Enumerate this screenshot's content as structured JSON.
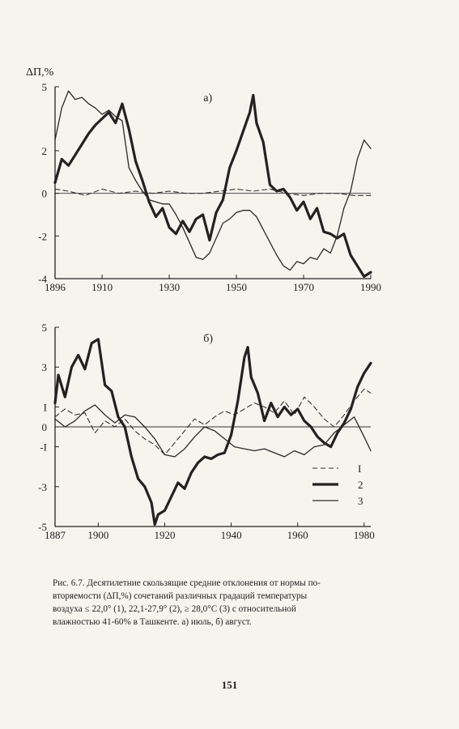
{
  "chart_data": [
    {
      "type": "line",
      "panel_label": "а)",
      "ylabel": "ΔП,%",
      "xlim": [
        1896,
        1990
      ],
      "ylim": [
        -4,
        5
      ],
      "x_ticks": [
        1896,
        1910,
        1930,
        1950,
        1970,
        1990
      ],
      "y_ticks": [
        5,
        2,
        0,
        -2,
        -4
      ],
      "series": [
        {
          "name": "1",
          "style": "dashed",
          "color": "#333333",
          "x": [
            1896,
            1900,
            1905,
            1910,
            1915,
            1920,
            1925,
            1930,
            1935,
            1940,
            1945,
            1950,
            1955,
            1960,
            1965,
            1970,
            1975,
            1980,
            1985,
            1990
          ],
          "y": [
            0.2,
            0.1,
            -0.1,
            0.2,
            0.0,
            0.1,
            0.0,
            0.1,
            0.0,
            0.0,
            0.1,
            0.2,
            0.1,
            0.2,
            0.0,
            -0.1,
            0.0,
            0.0,
            -0.1,
            -0.1
          ]
        },
        {
          "name": "2",
          "style": "thick",
          "color": "#222222",
          "x": [
            1896,
            1898,
            1900,
            1902,
            1904,
            1906,
            1908,
            1910,
            1912,
            1914,
            1916,
            1918,
            1920,
            1922,
            1924,
            1926,
            1928,
            1930,
            1932,
            1934,
            1936,
            1938,
            1940,
            1942,
            1944,
            1946,
            1948,
            1950,
            1952,
            1954,
            1955,
            1956,
            1958,
            1960,
            1962,
            1964,
            1966,
            1968,
            1970,
            1972,
            1974,
            1976,
            1978,
            1980,
            1982,
            1984,
            1986,
            1988,
            1990
          ],
          "y": [
            0.5,
            1.6,
            1.3,
            1.8,
            2.3,
            2.8,
            3.2,
            3.5,
            3.8,
            3.3,
            4.2,
            3.0,
            1.5,
            0.6,
            -0.4,
            -1.1,
            -0.7,
            -1.6,
            -1.9,
            -1.3,
            -1.8,
            -1.2,
            -1.0,
            -2.2,
            -0.9,
            -0.3,
            1.2,
            2.0,
            2.9,
            3.8,
            4.6,
            3.3,
            2.4,
            0.4,
            0.1,
            0.2,
            -0.2,
            -0.8,
            -0.4,
            -1.2,
            -0.7,
            -1.8,
            -1.9,
            -2.1,
            -1.9,
            -2.9,
            -3.4,
            -3.9,
            -3.7
          ]
        },
        {
          "name": "3",
          "style": "thin",
          "color": "#2a2a2a",
          "x": [
            1896,
            1898,
            1900,
            1902,
            1904,
            1906,
            1908,
            1910,
            1912,
            1914,
            1916,
            1918,
            1920,
            1922,
            1924,
            1926,
            1928,
            1930,
            1932,
            1934,
            1936,
            1938,
            1940,
            1942,
            1944,
            1946,
            1948,
            1950,
            1952,
            1954,
            1956,
            1958,
            1960,
            1962,
            1964,
            1966,
            1968,
            1970,
            1972,
            1974,
            1976,
            1978,
            1980,
            1982,
            1984,
            1986,
            1988,
            1990
          ],
          "y": [
            2.5,
            4.0,
            4.8,
            4.4,
            4.5,
            4.2,
            4.0,
            3.7,
            3.9,
            3.6,
            3.4,
            1.2,
            0.6,
            0.1,
            -0.3,
            -0.4,
            -0.5,
            -0.5,
            -1.0,
            -1.6,
            -2.3,
            -3.0,
            -3.1,
            -2.8,
            -2.1,
            -1.4,
            -1.2,
            -0.9,
            -0.8,
            -0.8,
            -1.1,
            -1.7,
            -2.3,
            -2.9,
            -3.4,
            -3.6,
            -3.2,
            -3.3,
            -3.0,
            -3.1,
            -2.6,
            -2.8,
            -2.0,
            -0.7,
            0.1,
            1.6,
            2.5,
            2.1
          ]
        }
      ]
    },
    {
      "type": "line",
      "panel_label": "б)",
      "ylabel": "",
      "xlim": [
        1887,
        1982
      ],
      "ylim": [
        -5,
        5
      ],
      "x_ticks": [
        1887,
        1900,
        1920,
        1940,
        1960,
        1980
      ],
      "y_ticks": [
        5,
        3,
        1,
        0,
        -1,
        -3,
        -5
      ],
      "y_tick_labels": [
        "5",
        "3",
        "I",
        "0",
        "-I",
        "-3",
        "-5"
      ],
      "legend_position": "bottom-right",
      "series": [
        {
          "name": "I",
          "style": "dashed",
          "color": "#333333",
          "x": [
            1887,
            1890,
            1893,
            1896,
            1899,
            1902,
            1905,
            1908,
            1911,
            1914,
            1917,
            1920,
            1923,
            1926,
            1929,
            1932,
            1935,
            1938,
            1941,
            1944,
            1947,
            1950,
            1953,
            1956,
            1959,
            1962,
            1965,
            1968,
            1971,
            1974,
            1977,
            1980,
            1982
          ],
          "y": [
            0.5,
            0.9,
            0.6,
            0.7,
            -0.3,
            0.3,
            0.0,
            0.4,
            -0.2,
            -0.6,
            -0.9,
            -1.4,
            -0.8,
            -0.2,
            0.4,
            0.1,
            0.5,
            0.8,
            0.6,
            0.9,
            1.2,
            1.0,
            0.7,
            1.3,
            0.6,
            1.5,
            1.0,
            0.4,
            0.0,
            0.6,
            1.3,
            1.9,
            1.7
          ]
        },
        {
          "name": "2",
          "style": "thick",
          "color": "#222222",
          "x": [
            1887,
            1888,
            1890,
            1892,
            1894,
            1896,
            1898,
            1900,
            1902,
            1904,
            1906,
            1908,
            1910,
            1912,
            1914,
            1916,
            1917,
            1918,
            1920,
            1922,
            1924,
            1926,
            1928,
            1930,
            1932,
            1934,
            1936,
            1938,
            1940,
            1942,
            1944,
            1945,
            1946,
            1948,
            1950,
            1952,
            1954,
            1956,
            1958,
            1960,
            1962,
            1964,
            1966,
            1968,
            1970,
            1972,
            1974,
            1976,
            1978,
            1980,
            1982
          ],
          "y": [
            1.2,
            2.6,
            1.5,
            3.0,
            3.6,
            2.9,
            4.2,
            4.4,
            2.1,
            1.8,
            0.5,
            0.0,
            -1.5,
            -2.6,
            -3.0,
            -3.8,
            -4.9,
            -4.4,
            -4.2,
            -3.5,
            -2.8,
            -3.1,
            -2.3,
            -1.8,
            -1.5,
            -1.6,
            -1.4,
            -1.3,
            -0.4,
            1.3,
            3.5,
            4.0,
            2.5,
            1.7,
            0.3,
            1.2,
            0.5,
            1.0,
            0.6,
            0.9,
            0.3,
            0.0,
            -0.5,
            -0.8,
            -1.0,
            -0.3,
            0.2,
            0.9,
            2.0,
            2.7,
            3.2
          ]
        },
        {
          "name": "3",
          "style": "thin",
          "color": "#2a2a2a",
          "x": [
            1887,
            1890,
            1893,
            1896,
            1899,
            1902,
            1905,
            1908,
            1911,
            1914,
            1917,
            1920,
            1923,
            1926,
            1929,
            1932,
            1935,
            1938,
            1941,
            1944,
            1947,
            1950,
            1953,
            1956,
            1959,
            1962,
            1965,
            1968,
            1971,
            1974,
            1977,
            1980,
            1982
          ],
          "y": [
            0.4,
            0.0,
            0.3,
            0.8,
            1.1,
            0.6,
            0.2,
            0.6,
            0.5,
            0.0,
            -0.6,
            -1.4,
            -1.5,
            -1.1,
            -0.5,
            0.0,
            -0.2,
            -0.6,
            -1.0,
            -1.1,
            -1.2,
            -1.1,
            -1.3,
            -1.5,
            -1.2,
            -1.4,
            -1.0,
            -0.9,
            -0.3,
            0.1,
            0.5,
            -0.5,
            -1.2
          ]
        }
      ]
    }
  ],
  "caption": {
    "line1": "Рис. 6.7. Десятилетние скользящие средние отклонения от нормы по-",
    "line2": "вторяемости (ΔП,%) сочетаний различных градаций температуры",
    "line3": "воздуха ≤ 22,0° (1), 22,1-27,9° (2), ≥ 28,0°C (3) с относительной",
    "line4": "влажностью 41-60% в Ташкенте. а) июль, б) август."
  },
  "page_number": "151"
}
